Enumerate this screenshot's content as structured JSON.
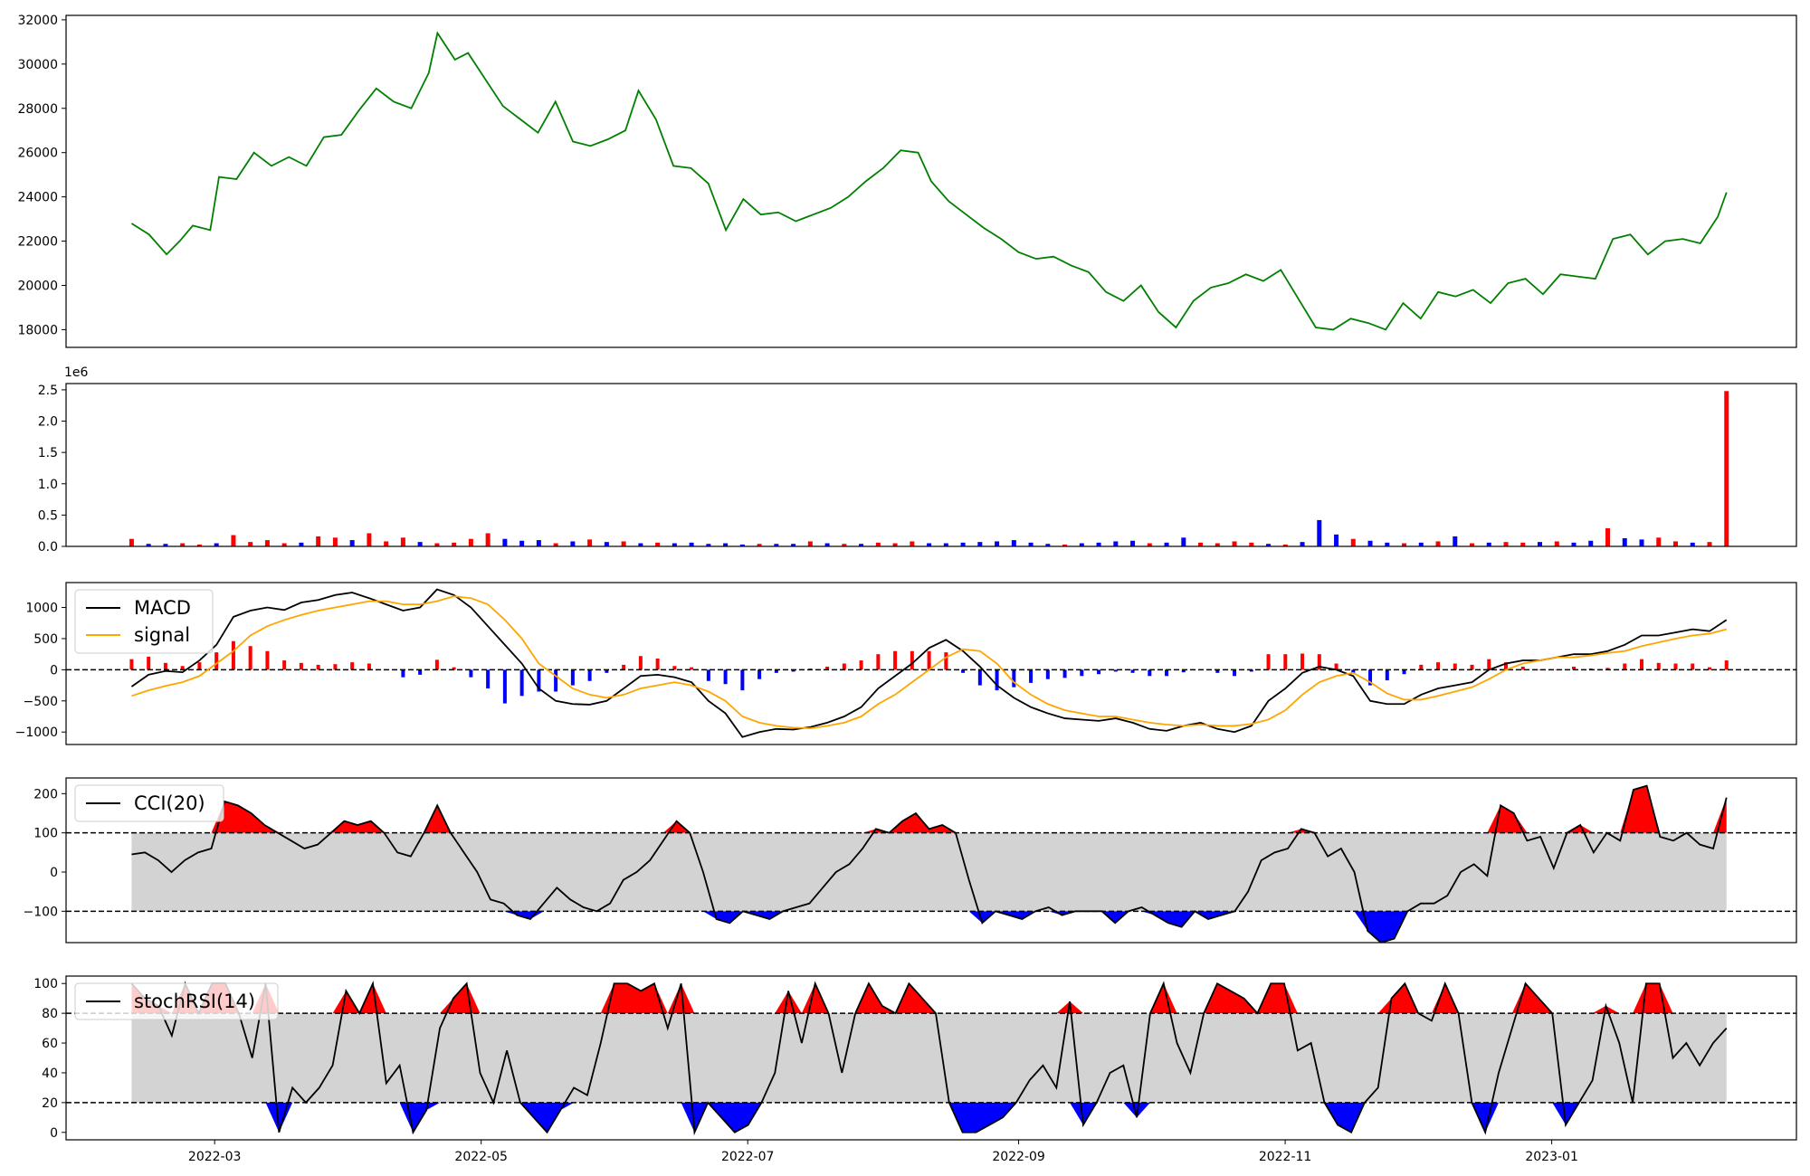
{
  "chart_data": [
    {
      "type": "line",
      "panel": "price",
      "ylim": [
        17200,
        32200
      ],
      "yticks": [
        "18000",
        "20000",
        "22000",
        "24000",
        "26000",
        "28000",
        "30000",
        "32000"
      ],
      "line_color": "#008000",
      "x": [
        "2022-02-10",
        "2022-02-14",
        "2022-02-18",
        "2022-02-21",
        "2022-02-24",
        "2022-02-28",
        "2022-03-02",
        "2022-03-06",
        "2022-03-10",
        "2022-03-14",
        "2022-03-18",
        "2022-03-22",
        "2022-03-26",
        "2022-03-30",
        "2022-04-03",
        "2022-04-07",
        "2022-04-11",
        "2022-04-15",
        "2022-04-19",
        "2022-04-21",
        "2022-04-25",
        "2022-04-28",
        "2022-05-02",
        "2022-05-06",
        "2022-05-10",
        "2022-05-14",
        "2022-05-18",
        "2022-05-22",
        "2022-05-26",
        "2022-05-30",
        "2022-06-03",
        "2022-06-06",
        "2022-06-10",
        "2022-06-14",
        "2022-06-18",
        "2022-06-22",
        "2022-06-26",
        "2022-06-30",
        "2022-07-04",
        "2022-07-08",
        "2022-07-12",
        "2022-07-16",
        "2022-07-20",
        "2022-07-24",
        "2022-07-28",
        "2022-08-01",
        "2022-08-05",
        "2022-08-09",
        "2022-08-12",
        "2022-08-16",
        "2022-08-20",
        "2022-08-24",
        "2022-08-28",
        "2022-09-01",
        "2022-09-05",
        "2022-09-09",
        "2022-09-13",
        "2022-09-17",
        "2022-09-21",
        "2022-09-25",
        "2022-09-29",
        "2022-10-03",
        "2022-10-07",
        "2022-10-11",
        "2022-10-15",
        "2022-10-19",
        "2022-10-23",
        "2022-10-27",
        "2022-10-31",
        "2022-11-04",
        "2022-11-08",
        "2022-11-12",
        "2022-11-16",
        "2022-11-20",
        "2022-11-24",
        "2022-11-28",
        "2022-12-02",
        "2022-12-06",
        "2022-12-10",
        "2022-12-14",
        "2022-12-18",
        "2022-12-22",
        "2022-12-26",
        "2022-12-30",
        "2023-01-03",
        "2023-01-07",
        "2023-01-11",
        "2023-01-15",
        "2023-01-19",
        "2023-01-23",
        "2023-01-27",
        "2023-01-31",
        "2023-02-04",
        "2023-02-08",
        "2023-02-10"
      ],
      "values": [
        22800,
        22300,
        21400,
        22000,
        22700,
        22500,
        24900,
        24800,
        26000,
        25400,
        25800,
        25400,
        26700,
        26800,
        27900,
        28900,
        28300,
        28000,
        29600,
        31400,
        30200,
        30500,
        29300,
        28100,
        27500,
        26900,
        28300,
        26500,
        26300,
        26600,
        27000,
        28800,
        27500,
        25400,
        25300,
        24600,
        22500,
        23900,
        23200,
        23300,
        22900,
        23200,
        23500,
        24000,
        24700,
        25300,
        26100,
        26000,
        24700,
        23800,
        23200,
        22600,
        22100,
        21500,
        21200,
        21300,
        20900,
        20600,
        19700,
        19300,
        20000,
        18800,
        18100,
        19300,
        19900,
        20100,
        20500,
        20200,
        20700,
        19400,
        18100,
        18000,
        18500,
        18300,
        18000,
        19200,
        18500,
        19700,
        19500,
        19800,
        19200,
        20100,
        20300,
        19600,
        20500,
        20400,
        20300,
        22100,
        22300,
        21400,
        22000,
        22100,
        21900,
        23100,
        24200
      ]
    },
    {
      "type": "bar",
      "panel": "volume",
      "ylim": [
        0,
        2.6
      ],
      "yticks": [
        "0.0",
        "0.5",
        "1.0",
        "1.5",
        "2.0",
        "2.5"
      ],
      "multiplier_label": "1e6",
      "colors": {
        "up": "#ff0000",
        "down": "#0000ff"
      },
      "x_range": [
        "2022-02-10",
        "2023-02-10"
      ],
      "values": [
        0.12,
        0.04,
        0.04,
        0.05,
        0.03,
        0.05,
        0.18,
        0.07,
        0.1,
        0.05,
        0.06,
        0.16,
        0.14,
        0.1,
        0.21,
        0.08,
        0.14,
        0.07,
        0.05,
        0.06,
        0.12,
        0.21,
        0.12,
        0.09,
        0.1,
        0.05,
        0.08,
        0.11,
        0.07,
        0.08,
        0.05,
        0.06,
        0.05,
        0.06,
        0.04,
        0.05,
        0.03,
        0.04,
        0.04,
        0.04,
        0.08,
        0.05,
        0.04,
        0.04,
        0.06,
        0.05,
        0.08,
        0.05,
        0.05,
        0.06,
        0.07,
        0.08,
        0.1,
        0.06,
        0.04,
        0.03,
        0.05,
        0.06,
        0.08,
        0.09,
        0.05,
        0.06,
        0.14,
        0.06,
        0.05,
        0.08,
        0.06,
        0.04,
        0.03,
        0.07,
        0.42,
        0.19,
        0.12,
        0.09,
        0.06,
        0.05,
        0.06,
        0.08,
        0.16,
        0.05,
        0.06,
        0.07,
        0.06,
        0.07,
        0.08,
        0.06,
        0.09,
        0.29,
        0.13,
        0.11,
        0.14,
        0.08,
        0.06,
        0.07,
        2.48
      ],
      "up": [
        true,
        false,
        false,
        true,
        true,
        false,
        true,
        true,
        true,
        true,
        false,
        true,
        true,
        false,
        true,
        true,
        true,
        false,
        true,
        true,
        true,
        true,
        false,
        false,
        false,
        true,
        false,
        true,
        false,
        true,
        false,
        true,
        false,
        false,
        false,
        false,
        false,
        true,
        false,
        false,
        true,
        false,
        true,
        false,
        true,
        true,
        true,
        false,
        false,
        false,
        false,
        false,
        false,
        false,
        false,
        true,
        false,
        false,
        false,
        false,
        true,
        false,
        false,
        true,
        true,
        true,
        true,
        false,
        true,
        false,
        false,
        false,
        true,
        false,
        false,
        true,
        false,
        true,
        false,
        true,
        false,
        true,
        true,
        false,
        true,
        false,
        false,
        true,
        false,
        false,
        true,
        true,
        false,
        true,
        true
      ]
    },
    {
      "type": "line",
      "panel": "macd",
      "ylim": [
        -1200,
        1400
      ],
      "yticks": [
        "−1000",
        "−500",
        "0",
        "500",
        "1000"
      ],
      "series": [
        {
          "name": "MACD",
          "color": "#000000",
          "values": [
            -270,
            -80,
            -20,
            -40,
            150,
            400,
            850,
            950,
            1000,
            960,
            1080,
            1120,
            1200,
            1240,
            1150,
            1050,
            950,
            1000,
            1290,
            1200,
            1000,
            700,
            400,
            100,
            -300,
            -500,
            -550,
            -560,
            -500,
            -300,
            -100,
            -80,
            -120,
            -200,
            -500,
            -700,
            -1080,
            -1000,
            -950,
            -960,
            -920,
            -850,
            -750,
            -600,
            -300,
            -100,
            100,
            350,
            480,
            300,
            50,
            -250,
            -450,
            -600,
            -700,
            -780,
            -800,
            -820,
            -780,
            -850,
            -950,
            -980,
            -900,
            -850,
            -950,
            -1000,
            -900,
            -500,
            -300,
            -50,
            50,
            0,
            -100,
            -500,
            -550,
            -550,
            -400,
            -300,
            -250,
            -200,
            0,
            100,
            150,
            150,
            200,
            250,
            250,
            300,
            400,
            550,
            550,
            600,
            650,
            620,
            800
          ]
        },
        {
          "name": "signal",
          "color": "#ffa500",
          "values": [
            -420,
            -330,
            -260,
            -200,
            -100,
            100,
            300,
            550,
            700,
            800,
            880,
            950,
            1000,
            1050,
            1100,
            1100,
            1050,
            1050,
            1100,
            1180,
            1150,
            1050,
            800,
            500,
            100,
            -100,
            -300,
            -400,
            -450,
            -400,
            -300,
            -250,
            -200,
            -250,
            -350,
            -500,
            -750,
            -850,
            -900,
            -930,
            -940,
            -900,
            -850,
            -750,
            -550,
            -400,
            -200,
            0,
            200,
            330,
            300,
            100,
            -200,
            -400,
            -550,
            -650,
            -700,
            -750,
            -750,
            -800,
            -850,
            -880,
            -900,
            -880,
            -900,
            -900,
            -870,
            -800,
            -650,
            -400,
            -200,
            -100,
            -50,
            -200,
            -380,
            -480,
            -480,
            -420,
            -350,
            -280,
            -150,
            0,
            100,
            150,
            200,
            200,
            230,
            270,
            300,
            380,
            440,
            500,
            550,
            580,
            650
          ]
        }
      ],
      "histogram": [
        170,
        210,
        110,
        60,
        120,
        280,
        460,
        380,
        300,
        150,
        110,
        80,
        90,
        120,
        100,
        0,
        -120,
        -80,
        160,
        40,
        -120,
        -300,
        -540,
        -420,
        -350,
        -350,
        -250,
        -180,
        -50,
        80,
        220,
        180,
        60,
        40,
        -180,
        -230,
        -330,
        -150,
        -50,
        -30,
        20,
        50,
        100,
        150,
        250,
        300,
        300,
        300,
        280,
        -50,
        -250,
        -330,
        -280,
        -210,
        -150,
        -130,
        -100,
        -70,
        -30,
        -50,
        -100,
        -100,
        -40,
        0,
        -50,
        -100,
        -30,
        250,
        250,
        260,
        250,
        100,
        -50,
        -250,
        -170,
        -70,
        80,
        120,
        100,
        80,
        170,
        120,
        50,
        0,
        0,
        50,
        20,
        30,
        100,
        170,
        110,
        100,
        100,
        40,
        150
      ],
      "zero_line": 0
    },
    {
      "type": "area",
      "panel": "cci",
      "ylim": [
        -180,
        240
      ],
      "yticks": [
        "−100",
        "0",
        "100",
        "200"
      ],
      "series": [
        {
          "name": "CCI(20)",
          "color": "#000000",
          "values": [
            45,
            50,
            30,
            0,
            30,
            50,
            60,
            180,
            170,
            150,
            120,
            100,
            80,
            60,
            70,
            100,
            130,
            120,
            130,
            100,
            50,
            40,
            100,
            170,
            100,
            50,
            0,
            -70,
            -80,
            -110,
            -120,
            -80,
            -40,
            -70,
            -90,
            -100,
            -80,
            -20,
            0,
            30,
            80,
            130,
            100,
            0,
            -120,
            -130,
            -100,
            -110,
            -120,
            -100,
            -90,
            -80,
            -40,
            0,
            20,
            60,
            110,
            100,
            130,
            150,
            110,
            120,
            100,
            -20,
            -130,
            -100,
            -110,
            -120,
            -100,
            -90,
            -110,
            -100,
            -100,
            -100,
            -130,
            -100,
            -90,
            -110,
            -130,
            -140,
            -100,
            -120,
            -110,
            -100,
            -50,
            30,
            50,
            60,
            110,
            100,
            40,
            60,
            0,
            -150,
            -180,
            -170,
            -100,
            -80,
            -80,
            -60,
            0,
            20,
            -10,
            170,
            150,
            80,
            90,
            10,
            100,
            120,
            50,
            100,
            80,
            210,
            220,
            90,
            80,
            100,
            70,
            60,
            190
          ]
        }
      ],
      "levels": [
        100,
        -100
      ],
      "fill_colors": {
        "band": "#d3d3d3",
        "above": "#ff0000",
        "below": "#0000ff"
      }
    },
    {
      "type": "area",
      "panel": "stochrsi",
      "ylim": [
        -5,
        105
      ],
      "yticks": [
        "0",
        "20",
        "40",
        "60",
        "80",
        "100"
      ],
      "series": [
        {
          "name": "stochRSI(14)",
          "color": "#000000",
          "values": [
            100,
            90,
            85,
            65,
            100,
            80,
            100,
            100,
            80,
            50,
            100,
            0,
            30,
            20,
            30,
            45,
            95,
            80,
            100,
            33,
            45,
            0,
            15,
            70,
            90,
            100,
            40,
            20,
            55,
            20,
            10,
            0,
            15,
            30,
            25,
            60,
            100,
            100,
            95,
            100,
            70,
            100,
            0,
            20,
            10,
            0,
            5,
            20,
            40,
            95,
            60,
            100,
            80,
            40,
            80,
            100,
            85,
            80,
            100,
            90,
            80,
            20,
            0,
            0,
            5,
            10,
            20,
            35,
            45,
            30,
            88,
            5,
            20,
            40,
            45,
            10,
            80,
            100,
            60,
            40,
            80,
            100,
            95,
            90,
            80,
            100,
            100,
            55,
            60,
            20,
            5,
            0,
            20,
            30,
            90,
            100,
            80,
            75,
            100,
            80,
            20,
            0,
            40,
            70,
            100,
            90,
            80,
            5,
            20,
            35,
            85,
            60,
            20,
            100,
            100,
            50,
            60,
            45,
            60,
            70
          ]
        }
      ],
      "levels": [
        80,
        20
      ],
      "fill_colors": {
        "band": "#d3d3d3",
        "above": "#ff0000",
        "below": "#0000ff"
      }
    }
  ],
  "x_axis": {
    "range": [
      "2022-01-26",
      "2023-02-26"
    ],
    "ticks": [
      {
        "date": "2022-03-01",
        "label": "2022-03"
      },
      {
        "date": "2022-05-01",
        "label": "2022-05"
      },
      {
        "date": "2022-07-01",
        "label": "2022-07"
      },
      {
        "date": "2022-09-01",
        "label": "2022-09"
      },
      {
        "date": "2022-11-01",
        "label": "2022-11"
      },
      {
        "date": "2023-01-01",
        "label": "2023-01"
      }
    ]
  }
}
